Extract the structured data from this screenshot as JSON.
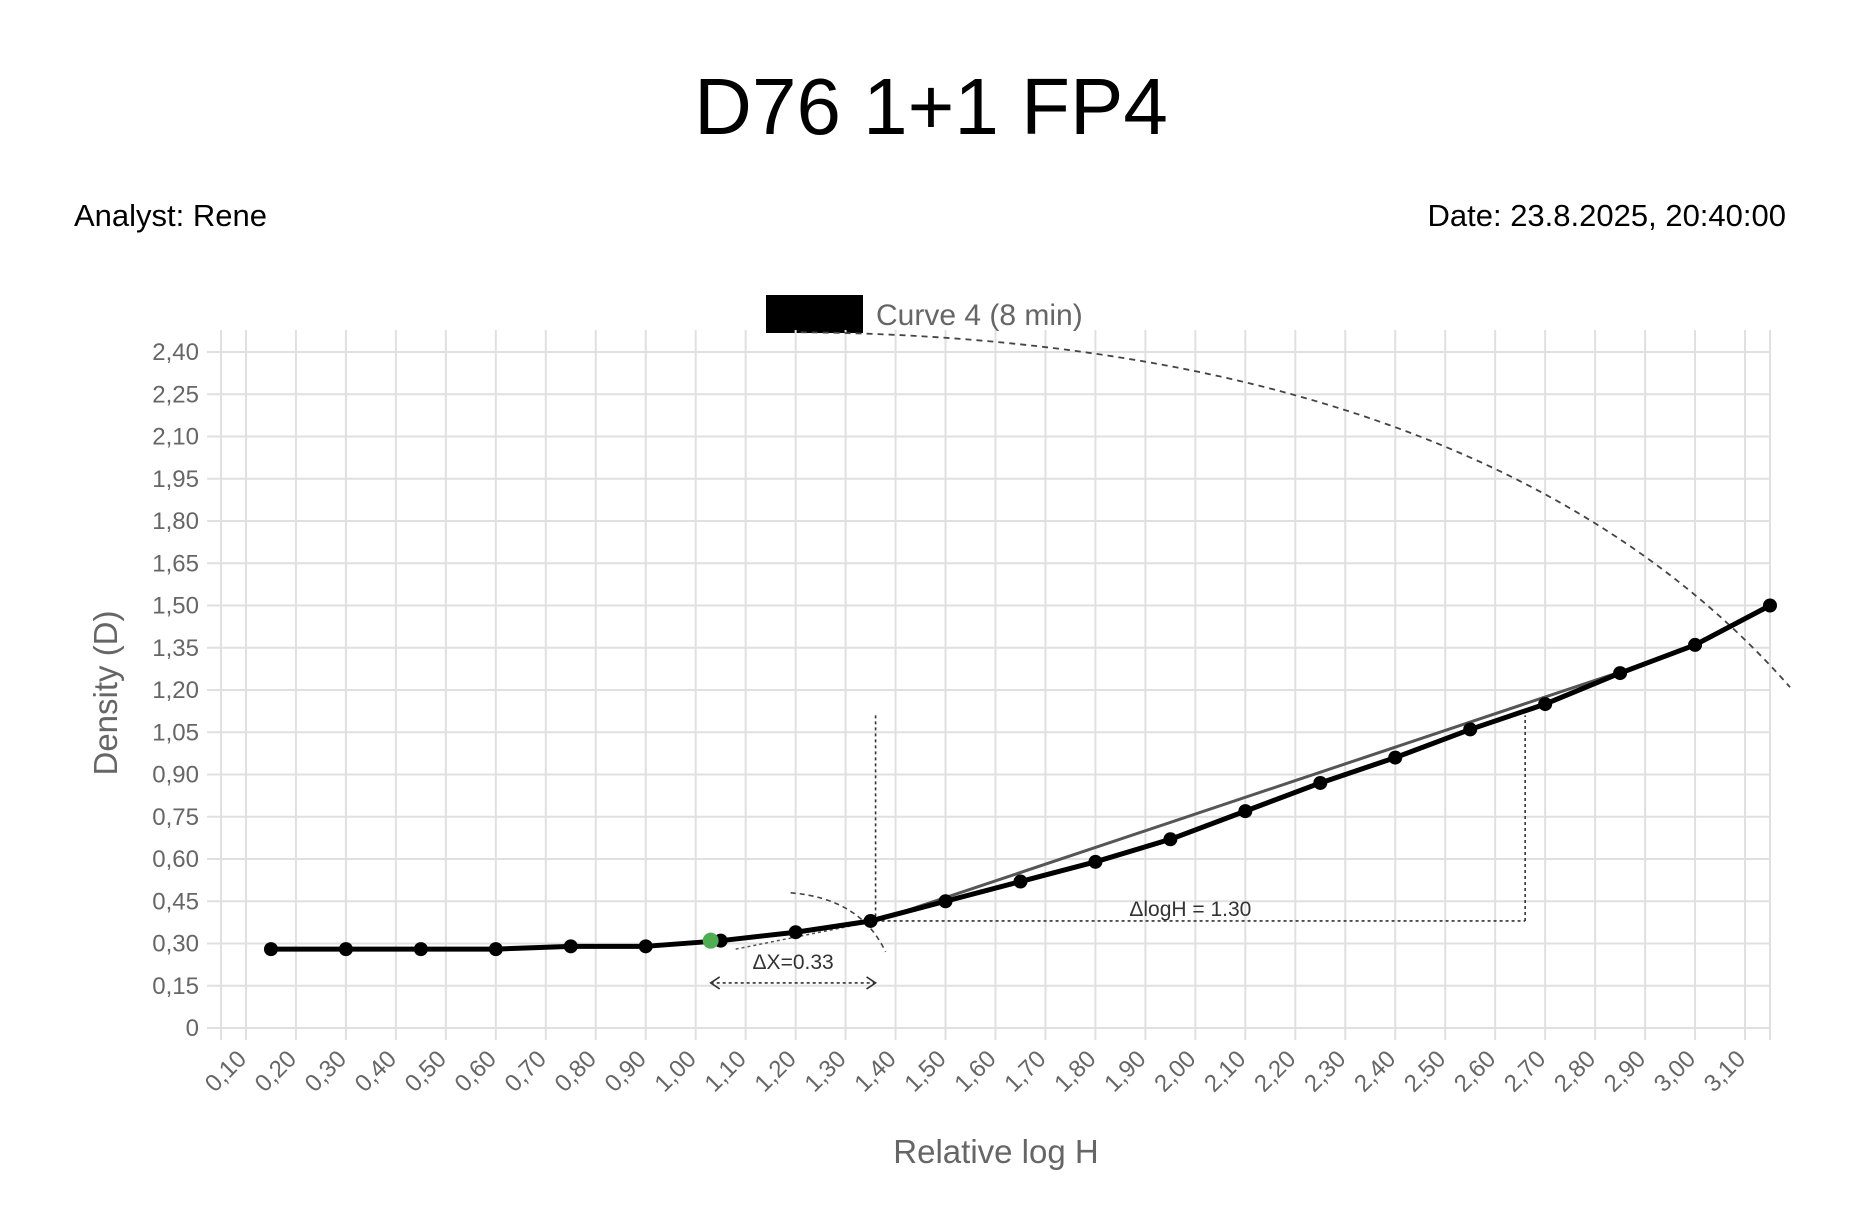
{
  "header": {
    "title": "D76 1+1 FP4",
    "analyst": "Analyst: Rene",
    "date": "Date: 23.8.2025, 20:40:00"
  },
  "chart_data": {
    "type": "line",
    "xlabel": "Relative log H",
    "ylabel": "Density (D)",
    "x_ticks": [
      "0,10",
      "0,20",
      "0,30",
      "0,40",
      "0,50",
      "0,60",
      "0,70",
      "0,80",
      "0,90",
      "1,00",
      "1,10",
      "1,20",
      "1,30",
      "1,40",
      "1,50",
      "1,60",
      "1,70",
      "1,80",
      "1,90",
      "2,00",
      "2,10",
      "2,20",
      "2,30",
      "2,40",
      "2,50",
      "2,60",
      "2,70",
      "2,80",
      "2,90",
      "3,00",
      "3,10"
    ],
    "y_ticks": [
      "0",
      "0,15",
      "0,30",
      "0,45",
      "0,60",
      "0,75",
      "0,90",
      "1,05",
      "1,20",
      "1,35",
      "1,50",
      "1,65",
      "1,80",
      "1,95",
      "2,10",
      "2,25",
      "2,40"
    ],
    "xlim": [
      0.05,
      3.15
    ],
    "ylim": [
      0,
      2.4
    ],
    "grid": true,
    "legend": "top",
    "series": [
      {
        "name": "Curve 4 (8 min)",
        "color": "#000000",
        "x": [
          0.15,
          0.3,
          0.45,
          0.6,
          0.75,
          0.9,
          1.05,
          1.2,
          1.35,
          1.5,
          1.65,
          1.8,
          1.95,
          2.1,
          2.25,
          2.4,
          2.55,
          2.7,
          2.85,
          3.0,
          3.15
        ],
        "y": [
          0.28,
          0.28,
          0.28,
          0.28,
          0.29,
          0.29,
          0.31,
          0.34,
          0.38,
          0.45,
          0.52,
          0.59,
          0.67,
          0.77,
          0.87,
          0.96,
          1.06,
          1.15,
          1.26,
          1.36,
          1.5
        ]
      }
    ],
    "speed_point": {
      "x": 1.03,
      "y": 0.31,
      "color": "#4caf50"
    },
    "annotations": {
      "delta_x_label": "ΔX=0.33",
      "delta_logh_label": "ΔlogH = 1.30",
      "reference_point": {
        "x": 1.36,
        "y": 0.38
      },
      "tangent_end": {
        "x": 2.86,
        "y": 1.27
      },
      "delta_logh_end_x": 2.66,
      "delta_x_start_x": 1.03
    }
  }
}
